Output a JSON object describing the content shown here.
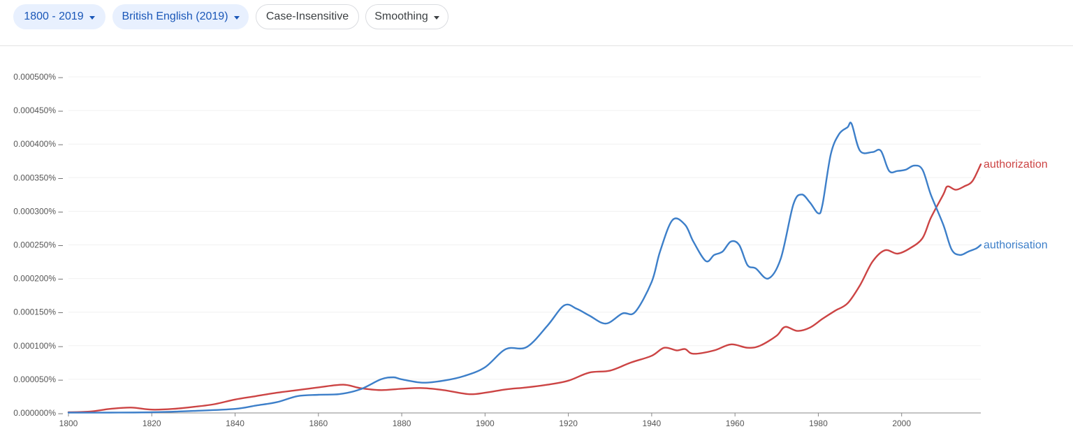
{
  "toolbar": {
    "year_range": "1800 - 2019",
    "corpus": "British English (2019)",
    "case_option": "Case-Insensitive",
    "smoothing": "Smoothing"
  },
  "colors": {
    "authorisation": "#3d7fc9",
    "authorization": "#cc4444",
    "chip_bg": "#e8f0fe",
    "chip_text": "#1a57b8",
    "gridline": "#f0f0f0",
    "axis": "#888888",
    "label": "#555555"
  },
  "icons": [
    "caret-down-icon"
  ],
  "chart_data": {
    "type": "line",
    "title": "",
    "xlabel": "",
    "ylabel": "",
    "xlim": [
      1800,
      2019
    ],
    "ylim": [
      0,
      0.0005
    ],
    "grid": true,
    "x_ticks": [
      {
        "value": 1800,
        "label": "1800"
      },
      {
        "value": 1820,
        "label": "1820"
      },
      {
        "value": 1840,
        "label": "1840"
      },
      {
        "value": 1860,
        "label": "1860"
      },
      {
        "value": 1880,
        "label": "1880"
      },
      {
        "value": 1900,
        "label": "1900"
      },
      {
        "value": 1920,
        "label": "1920"
      },
      {
        "value": 1940,
        "label": "1940"
      },
      {
        "value": 1960,
        "label": "1960"
      },
      {
        "value": 1980,
        "label": "1980"
      },
      {
        "value": 2000,
        "label": "2000"
      }
    ],
    "y_ticks": [
      {
        "value": 0.0,
        "label": "0.000000%"
      },
      {
        "value": 5e-05,
        "label": "0.000050%"
      },
      {
        "value": 0.0001,
        "label": "0.000100%"
      },
      {
        "value": 0.00015,
        "label": "0.000150%"
      },
      {
        "value": 0.0002,
        "label": "0.000200%"
      },
      {
        "value": 0.00025,
        "label": "0.000250%"
      },
      {
        "value": 0.0003,
        "label": "0.000300%"
      },
      {
        "value": 0.00035,
        "label": "0.000350%"
      },
      {
        "value": 0.0004,
        "label": "0.000400%"
      },
      {
        "value": 0.00045,
        "label": "0.000450%"
      },
      {
        "value": 0.0005,
        "label": "0.000500%"
      }
    ],
    "series": [
      {
        "name": "authorisation",
        "label": "authorisation",
        "color": "#3d7fc9",
        "points": [
          [
            1800,
            5e-07
          ],
          [
            1810,
            5e-07
          ],
          [
            1820,
            1e-06
          ],
          [
            1830,
            3e-06
          ],
          [
            1840,
            6e-06
          ],
          [
            1845,
            1.1e-05
          ],
          [
            1850,
            1.6e-05
          ],
          [
            1855,
            2.5e-05
          ],
          [
            1860,
            2.7e-05
          ],
          [
            1865,
            2.8e-05
          ],
          [
            1870,
            3.5e-05
          ],
          [
            1875,
            5e-05
          ],
          [
            1878,
            5.3e-05
          ],
          [
            1880,
            5e-05
          ],
          [
            1885,
            4.5e-05
          ],
          [
            1890,
            4.8e-05
          ],
          [
            1895,
            5.5e-05
          ],
          [
            1900,
            6.8e-05
          ],
          [
            1905,
            9.5e-05
          ],
          [
            1910,
            9.8e-05
          ],
          [
            1915,
            0.00013
          ],
          [
            1919,
            0.00016
          ],
          [
            1922,
            0.000155
          ],
          [
            1925,
            0.000145
          ],
          [
            1929,
            0.000133
          ],
          [
            1933,
            0.000148
          ],
          [
            1936,
            0.00015
          ],
          [
            1940,
            0.000195
          ],
          [
            1942,
            0.00024
          ],
          [
            1945,
            0.000287
          ],
          [
            1948,
            0.00028
          ],
          [
            1950,
            0.000255
          ],
          [
            1953,
            0.000226
          ],
          [
            1955,
            0.000235
          ],
          [
            1957,
            0.00024
          ],
          [
            1959,
            0.000255
          ],
          [
            1961,
            0.00025
          ],
          [
            1963,
            0.00022
          ],
          [
            1965,
            0.000215
          ],
          [
            1968,
            0.0002
          ],
          [
            1971,
            0.00023
          ],
          [
            1974,
            0.00031
          ],
          [
            1976,
            0.000325
          ],
          [
            1978,
            0.000313
          ],
          [
            1980,
            0.000297
          ],
          [
            1981,
            0.00031
          ],
          [
            1983,
            0.000385
          ],
          [
            1985,
            0.000415
          ],
          [
            1987,
            0.000425
          ],
          [
            1988,
            0.00043
          ],
          [
            1990,
            0.00039
          ],
          [
            1993,
            0.000388
          ],
          [
            1995,
            0.00039
          ],
          [
            1997,
            0.00036
          ],
          [
            1999,
            0.00036
          ],
          [
            2001,
            0.000362
          ],
          [
            2003,
            0.000368
          ],
          [
            2005,
            0.000362
          ],
          [
            2007,
            0.000325
          ],
          [
            2010,
            0.00028
          ],
          [
            2012,
            0.000243
          ],
          [
            2014,
            0.000235
          ],
          [
            2016,
            0.00024
          ],
          [
            2018,
            0.000245
          ],
          [
            2019,
            0.00025
          ]
        ]
      },
      {
        "name": "authorization",
        "label": "authorization",
        "color": "#cc4444",
        "points": [
          [
            1800,
            1e-06
          ],
          [
            1805,
            2e-06
          ],
          [
            1810,
            6e-06
          ],
          [
            1815,
            8e-06
          ],
          [
            1820,
            5e-06
          ],
          [
            1825,
            6e-06
          ],
          [
            1830,
            9e-06
          ],
          [
            1835,
            1.3e-05
          ],
          [
            1840,
            2e-05
          ],
          [
            1845,
            2.5e-05
          ],
          [
            1850,
            3e-05
          ],
          [
            1855,
            3.4e-05
          ],
          [
            1860,
            3.8e-05
          ],
          [
            1866,
            4.2e-05
          ],
          [
            1870,
            3.7e-05
          ],
          [
            1875,
            3.4e-05
          ],
          [
            1880,
            3.6e-05
          ],
          [
            1885,
            3.7e-05
          ],
          [
            1890,
            3.4e-05
          ],
          [
            1896,
            2.8e-05
          ],
          [
            1900,
            3e-05
          ],
          [
            1905,
            3.5e-05
          ],
          [
            1910,
            3.8e-05
          ],
          [
            1915,
            4.2e-05
          ],
          [
            1920,
            4.8e-05
          ],
          [
            1925,
            6e-05
          ],
          [
            1930,
            6.3e-05
          ],
          [
            1935,
            7.5e-05
          ],
          [
            1940,
            8.5e-05
          ],
          [
            1943,
            9.7e-05
          ],
          [
            1946,
            9.3e-05
          ],
          [
            1948,
            9.5e-05
          ],
          [
            1950,
            8.8e-05
          ],
          [
            1955,
            9.3e-05
          ],
          [
            1959,
            0.000102
          ],
          [
            1963,
            9.7e-05
          ],
          [
            1966,
            0.0001
          ],
          [
            1970,
            0.000115
          ],
          [
            1972,
            0.000128
          ],
          [
            1975,
            0.000122
          ],
          [
            1978,
            0.000127
          ],
          [
            1981,
            0.00014
          ],
          [
            1984,
            0.000152
          ],
          [
            1987,
            0.000163
          ],
          [
            1990,
            0.00019
          ],
          [
            1993,
            0.000225
          ],
          [
            1996,
            0.000242
          ],
          [
            1999,
            0.000237
          ],
          [
            2002,
            0.000245
          ],
          [
            2005,
            0.00026
          ],
          [
            2007,
            0.00029
          ],
          [
            2010,
            0.000325
          ],
          [
            2011,
            0.000337
          ],
          [
            2013,
            0.000332
          ],
          [
            2015,
            0.000337
          ],
          [
            2017,
            0.000345
          ],
          [
            2019,
            0.00037
          ]
        ]
      }
    ]
  }
}
